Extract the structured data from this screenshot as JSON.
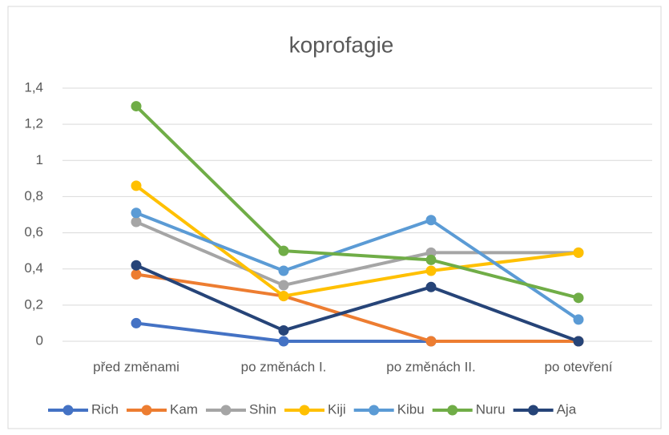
{
  "chart_data": {
    "type": "line",
    "title": "koprofagie",
    "categories": [
      "před změnami",
      "po změnách I.",
      "po změnách II.",
      "po otevření"
    ],
    "series": [
      {
        "name": "Rich",
        "color": "#4472c4",
        "values": [
          0.1,
          0,
          0,
          0
        ]
      },
      {
        "name": "Kam",
        "color": "#ed7d31",
        "values": [
          0.37,
          0.25,
          0,
          0
        ]
      },
      {
        "name": "Shin",
        "color": "#a5a5a5",
        "values": [
          0.66,
          0.31,
          0.49,
          0.49
        ]
      },
      {
        "name": "Kiji",
        "color": "#ffc000",
        "values": [
          0.86,
          0.25,
          0.39,
          0.49
        ]
      },
      {
        "name": "Kibu",
        "color": "#5b9bd5",
        "values": [
          0.71,
          0.39,
          0.67,
          0.12
        ]
      },
      {
        "name": "Nuru",
        "color": "#70ad47",
        "values": [
          1.3,
          0.5,
          0.45,
          0.24
        ]
      },
      {
        "name": "Aja",
        "color": "#264478",
        "values": [
          0.42,
          0.06,
          0.3,
          0
        ]
      }
    ],
    "ylim": [
      0,
      1.4
    ],
    "yticks": [
      0,
      {
        "value": 0.2,
        "label": "0,2"
      },
      {
        "value": 0.4,
        "label": "0,4"
      },
      {
        "value": 0.6,
        "label": "0,6"
      },
      {
        "value": 0.8,
        "label": "0,8"
      },
      1,
      {
        "value": 1.2,
        "label": "1,2"
      },
      {
        "value": 1.4,
        "label": "1,4"
      }
    ],
    "grid": true,
    "legend": "bottom"
  }
}
